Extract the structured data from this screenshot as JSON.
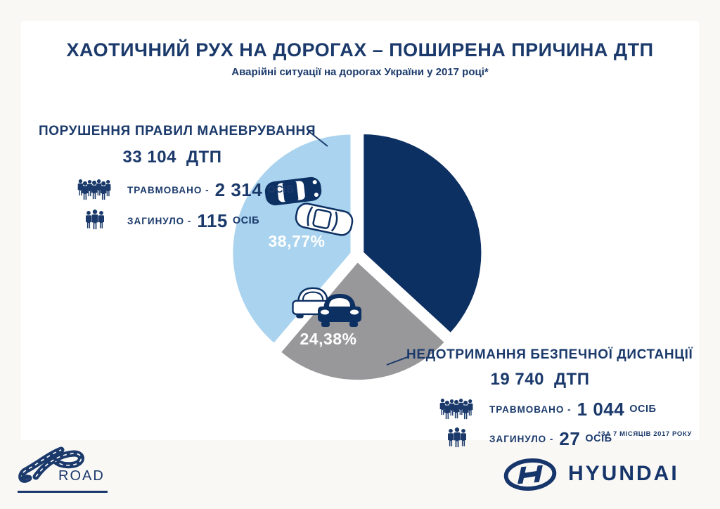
{
  "colors": {
    "navy": "#0d3063",
    "text_navy": "#1b3a6b",
    "light_blue": "#a9d3ee",
    "gray": "#98989a",
    "background": "#faf8f5",
    "card": "#ffffff"
  },
  "header": {
    "title": "ХАОТИЧНИЙ РУХ НА ДОРОГАХ – ПОШИРЕНА ПРИЧИНА ДТП",
    "subtitle": "Аварійні ситуації на дорогах України у 2017 році*"
  },
  "chart_data": {
    "type": "pie",
    "title": "Аварійні ситуації на дорогах України у 2017 році*",
    "legend_position": "none",
    "start_angle_deg": -90,
    "direction": "clockwise",
    "slices": [
      {
        "name": "other-unlabeled",
        "label": "",
        "value": 36.85,
        "color": "#0d3063"
      },
      {
        "name": "safe-distance-violation",
        "label": "24,38%",
        "value": 24.38,
        "color": "#98989a"
      },
      {
        "name": "maneuvering-violation",
        "label": "38,77%",
        "value": 38.77,
        "color": "#a9d3ee"
      }
    ]
  },
  "left_block": {
    "heading": "ПОРУШЕННЯ ПРАВИЛ МАНЕВРУВАННЯ",
    "total_value": "33 104",
    "total_unit": "ДТП",
    "injured_label": "ТРАВМОВАНО -",
    "injured_value": "2 314",
    "injured_unit": "ОСІБ",
    "killed_label": "ЗАГИНУЛО -",
    "killed_value": "115",
    "killed_unit": "ОСІБ"
  },
  "right_block": {
    "heading": "НЕДОТРИМАННЯ БЕЗПЕЧНОЇ ДИСТАНЦІЇ",
    "total_value": "19 740",
    "total_unit": "ДТП",
    "injured_label": "ТРАВМОВАНО -",
    "injured_value": "1 044",
    "injured_unit": "ОСІБ",
    "killed_label": "ЗАГИНУЛО -",
    "killed_value": "27",
    "killed_unit": "ОСІБ"
  },
  "footnote": "*ЗА 7 МІСЯЦІВ 2017 РОКУ",
  "footer": {
    "hroad_label": "ROAD",
    "hyundai_label": "HYUNDAI"
  }
}
